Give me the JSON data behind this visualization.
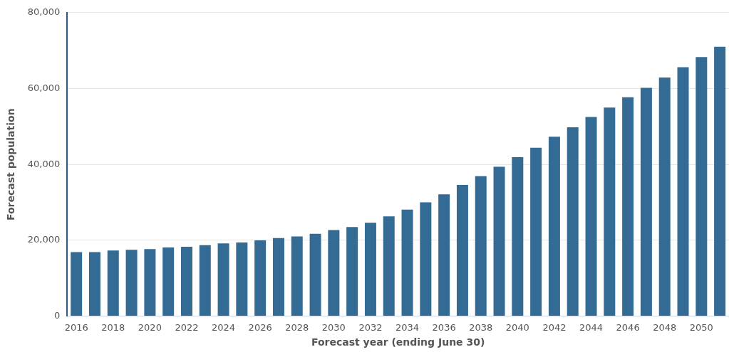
{
  "chart_data": {
    "type": "bar",
    "xlabel": "Forecast year (ending June 30)",
    "ylabel": "Forecast population",
    "categories": [
      "2016",
      null,
      "2018",
      null,
      "2020",
      null,
      "2022",
      null,
      "2024",
      null,
      "2026",
      null,
      "2028",
      null,
      "2030",
      null,
      "2032",
      null,
      "2034",
      null,
      "2036",
      null,
      "2038",
      null,
      "2040",
      null,
      "2042",
      null,
      "2044",
      null,
      "2046",
      null,
      "2048",
      null,
      "2050",
      null
    ],
    "values": [
      16900,
      16900,
      17300,
      17500,
      17700,
      18100,
      18300,
      18700,
      19200,
      19400,
      20000,
      20600,
      21000,
      21700,
      22700,
      23500,
      24600,
      26300,
      28100,
      30000,
      32100,
      34600,
      36900,
      39400,
      41900,
      44400,
      47300,
      49800,
      52500,
      55000,
      57700,
      60200,
      62900,
      65600,
      68300,
      71000
    ],
    "color": "#336b95",
    "ylim": [
      0,
      80000
    ],
    "yticks": [
      0,
      {
        "value": 20000,
        "label": "20,000"
      },
      {
        "value": 40000,
        "label": "40,000"
      },
      {
        "value": 60000,
        "label": "60,000"
      },
      {
        "value": 80000,
        "label": "80,000"
      }
    ],
    "grid": "y",
    "legend": false
  }
}
